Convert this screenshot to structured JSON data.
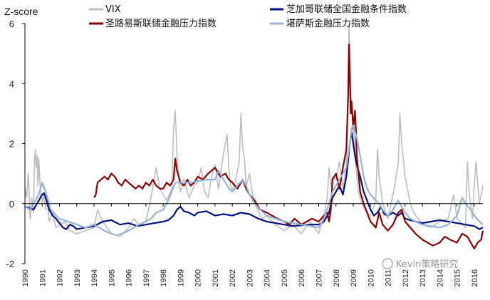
{
  "chart_data": {
    "type": "line",
    "title": "",
    "ylabel": "Z-score",
    "xlabel": "",
    "ylim": [
      -2,
      6
    ],
    "yticks": [
      -2,
      0,
      2,
      4,
      6
    ],
    "xlim": [
      1990,
      2016.5
    ],
    "xticks": [
      1990,
      1991,
      1992,
      1993,
      1994,
      1995,
      1996,
      1997,
      1998,
      1999,
      2000,
      2001,
      2002,
      2003,
      2004,
      2005,
      2006,
      2007,
      2008,
      2009,
      2010,
      2011,
      2012,
      2013,
      2014,
      2015,
      2016
    ],
    "grid": false,
    "legend_position": "top",
    "watermark": "Kevin策略研究",
    "series": [
      {
        "name": "VIX",
        "color": "#bdbdbd",
        "width": 1.6,
        "x": [
          1990,
          1990.1,
          1990.2,
          1990.3,
          1990.4,
          1990.5,
          1990.55,
          1990.6,
          1990.65,
          1990.7,
          1990.75,
          1990.8,
          1990.9,
          1991,
          1991.1,
          1991.2,
          1991.3,
          1991.4,
          1991.6,
          1991.8,
          1992,
          1992.3,
          1992.6,
          1993,
          1993.5,
          1994,
          1994.2,
          1994.5,
          1995,
          1995.5,
          1996,
          1996.3,
          1996.6,
          1997,
          1997.3,
          1997.6,
          1997.8,
          1998,
          1998.2,
          1998.5,
          1998.6,
          1998.7,
          1998.8,
          1998.9,
          1999,
          1999.2,
          1999.5,
          1999.8,
          2000,
          2000.2,
          2000.4,
          2000.6,
          2000.8,
          2001,
          2001.2,
          2001.5,
          2001.7,
          2001.8,
          2001.9,
          2002,
          2002.2,
          2002.4,
          2002.5,
          2002.6,
          2002.7,
          2002.8,
          2003,
          2003.2,
          2003.4,
          2003.7,
          2004,
          2004.5,
          2005,
          2005.5,
          2006,
          2006.5,
          2007,
          2007.3,
          2007.5,
          2007.6,
          2007.7,
          2007.8,
          2008,
          2008.2,
          2008.4,
          2008.6,
          2008.7,
          2008.75,
          2008.8,
          2008.85,
          2008.9,
          2009,
          2009.1,
          2009.2,
          2009.3,
          2009.5,
          2009.8,
          2010,
          2010.3,
          2010.4,
          2010.5,
          2010.7,
          2011,
          2011.3,
          2011.6,
          2011.7,
          2011.8,
          2012,
          2012.3,
          2012.5,
          2013,
          2013.5,
          2014,
          2014.5,
          2014.8,
          2015,
          2015.5,
          2015.6,
          2015.7,
          2015.9,
          2016,
          2016.1,
          2016.3,
          2016.5
        ],
        "values": [
          0.5,
          0.2,
          1.0,
          -0.5,
          0.2,
          -0.3,
          1.4,
          1.8,
          1.2,
          1.6,
          0.6,
          1.5,
          0.4,
          0.0,
          0.3,
          -0.2,
          0.2,
          -0.6,
          -0.3,
          -0.8,
          -0.7,
          -0.6,
          -0.9,
          -1.0,
          -0.9,
          -0.8,
          -0.2,
          -0.6,
          -1.0,
          -1.1,
          -0.8,
          -0.5,
          -0.7,
          -0.6,
          0.2,
          1.2,
          0.5,
          0.3,
          0.1,
          0.5,
          2.5,
          3.1,
          1.6,
          0.9,
          0.4,
          0.8,
          0.2,
          0.6,
          0.7,
          1.2,
          0.4,
          0.2,
          0.9,
          1.3,
          0.5,
          1.7,
          2.3,
          1.2,
          0.6,
          0.4,
          0.8,
          1.4,
          3.0,
          1.9,
          1.5,
          0.6,
          1.0,
          0.2,
          -0.1,
          -0.5,
          -0.4,
          -0.7,
          -0.9,
          -0.7,
          -1.0,
          -0.6,
          -1.0,
          -0.4,
          0.2,
          1.2,
          0.6,
          0.9,
          0.8,
          1.4,
          0.5,
          1.3,
          3.5,
          6.0,
          5.2,
          4.0,
          3.2,
          2.8,
          1.6,
          0.9,
          0.4,
          0.0,
          -0.3,
          -0.4,
          0.1,
          1.8,
          0.9,
          0.0,
          -0.5,
          0.3,
          1.3,
          3.0,
          2.0,
          0.9,
          0.0,
          -0.3,
          -0.7,
          -0.8,
          -0.6,
          -0.5,
          0.3,
          -0.5,
          -0.8,
          1.4,
          0.4,
          -0.5,
          0.6,
          1.4,
          0.0,
          0.6
        ]
      },
      {
        "name": "芝加哥联储全国金融条件指数",
        "color": "#00107a",
        "width": 2.2,
        "x": [
          1990,
          1990.3,
          1990.5,
          1990.7,
          1990.9,
          1991,
          1991.1,
          1991.2,
          1991.4,
          1991.6,
          1991.8,
          1992,
          1992.2,
          1992.4,
          1992.6,
          1992.8,
          1993,
          1993.5,
          1994,
          1994.5,
          1995,
          1995.5,
          1996,
          1996.5,
          1997,
          1997.5,
          1998,
          1998.3,
          1998.6,
          1998.8,
          1999,
          1999.2,
          1999.5,
          1999.8,
          2000,
          2000.5,
          2001,
          2001.5,
          2002,
          2002.5,
          2003,
          2003.5,
          2004,
          2004.5,
          2005,
          2005.5,
          2006,
          2006.5,
          2007,
          2007.3,
          2007.6,
          2007.8,
          2008,
          2008.2,
          2008.4,
          2008.6,
          2008.7,
          2008.8,
          2008.9,
          2009,
          2009.1,
          2009.2,
          2009.4,
          2009.6,
          2009.8,
          2010,
          2010.2,
          2010.4,
          2010.6,
          2010.8,
          2011,
          2011.3,
          2011.6,
          2011.8,
          2012,
          2012.3,
          2012.6,
          2013,
          2013.5,
          2014,
          2014.5,
          2015,
          2015.5,
          2016,
          2016.3,
          2016.5
        ],
        "values": [
          -0.1,
          -0.15,
          -0.2,
          0.0,
          0.2,
          0.3,
          0.35,
          0.2,
          -0.2,
          -0.4,
          -0.5,
          -0.65,
          -0.8,
          -0.85,
          -0.7,
          -0.75,
          -0.85,
          -0.8,
          -0.75,
          -0.6,
          -0.55,
          -0.7,
          -0.65,
          -0.75,
          -0.7,
          -0.65,
          -0.6,
          -0.55,
          -0.4,
          -0.2,
          -0.1,
          -0.25,
          -0.3,
          -0.4,
          -0.3,
          -0.25,
          -0.4,
          -0.35,
          -0.4,
          -0.3,
          -0.35,
          -0.5,
          -0.6,
          -0.65,
          -0.7,
          -0.75,
          -0.72,
          -0.7,
          -0.7,
          -0.6,
          -0.3,
          0.2,
          0.4,
          0.6,
          0.3,
          0.9,
          1.4,
          2.0,
          2.4,
          2.0,
          1.6,
          1.3,
          0.9,
          0.4,
          0.1,
          -0.2,
          -0.4,
          -0.3,
          -0.1,
          -0.35,
          -0.4,
          -0.3,
          -0.4,
          -0.3,
          -0.5,
          -0.55,
          -0.6,
          -0.65,
          -0.6,
          -0.55,
          -0.6,
          -0.65,
          -0.7,
          -0.75,
          -0.85,
          -0.8
        ]
      },
      {
        "name": "圣路易斯联储金融压力指数",
        "color": "#8b0000",
        "width": 2.2,
        "x": [
          1994,
          1994.1,
          1994.2,
          1994.4,
          1994.6,
          1994.8,
          1995,
          1995.2,
          1995.4,
          1995.6,
          1995.8,
          1996,
          1996.2,
          1996.4,
          1996.6,
          1996.8,
          1997,
          1997.2,
          1997.4,
          1997.6,
          1997.8,
          1998,
          1998.2,
          1998.4,
          1998.6,
          1998.7,
          1998.8,
          1999,
          1999.2,
          1999.4,
          1999.6,
          1999.8,
          2000,
          2000.3,
          2000.6,
          2001,
          2001.3,
          2001.6,
          2001.8,
          2002,
          2002.3,
          2002.6,
          2002.8,
          2003,
          2003.3,
          2003.6,
          2004,
          2004.3,
          2004.6,
          2005,
          2005.3,
          2005.6,
          2006,
          2006.3,
          2006.6,
          2007,
          2007.3,
          2007.5,
          2007.6,
          2007.7,
          2007.8,
          2008,
          2008.2,
          2008.4,
          2008.6,
          2008.7,
          2008.75,
          2008.8,
          2008.85,
          2008.9,
          2009,
          2009.1,
          2009.15,
          2009.2,
          2009.3,
          2009.4,
          2009.6,
          2009.8,
          2010,
          2010.3,
          2010.5,
          2010.7,
          2011,
          2011.3,
          2011.6,
          2011.8,
          2012,
          2012.3,
          2012.6,
          2013,
          2013.3,
          2013.6,
          2014,
          2014.3,
          2014.6,
          2015,
          2015.3,
          2015.6,
          2015.8,
          2016,
          2016.2,
          2016.4,
          2016.5
        ],
        "values": [
          0.2,
          0.3,
          0.7,
          0.8,
          0.9,
          0.8,
          1.0,
          0.9,
          0.7,
          0.6,
          0.8,
          0.7,
          0.6,
          0.5,
          0.6,
          0.5,
          0.7,
          0.6,
          0.8,
          0.6,
          0.5,
          0.5,
          0.7,
          0.6,
          0.8,
          1.5,
          1.1,
          0.7,
          0.6,
          0.8,
          0.6,
          0.7,
          0.9,
          0.8,
          1.0,
          1.2,
          0.9,
          1.0,
          0.8,
          0.7,
          0.5,
          0.8,
          0.5,
          0.3,
          0.1,
          -0.2,
          -0.3,
          -0.4,
          -0.5,
          -0.6,
          -0.7,
          -0.5,
          -0.7,
          -0.6,
          -0.5,
          -0.6,
          -0.4,
          -0.3,
          -0.6,
          -0.2,
          0.8,
          1.0,
          0.5,
          1.2,
          1.8,
          3.5,
          5.3,
          4.2,
          3.0,
          3.4,
          2.5,
          3.1,
          2.5,
          1.6,
          1.0,
          0.4,
          0.0,
          -0.3,
          -0.6,
          -0.8,
          -0.3,
          -0.7,
          -0.9,
          -0.7,
          -0.3,
          -0.2,
          -0.6,
          -0.8,
          -1.0,
          -1.2,
          -1.3,
          -1.4,
          -1.3,
          -1.1,
          -1.2,
          -1.3,
          -1.0,
          -1.1,
          -1.3,
          -1.5,
          -1.3,
          -1.2,
          -0.9
        ]
      },
      {
        "name": "堪萨斯金融压力指数",
        "color": "#95b3d7",
        "width": 2.2,
        "x": [
          1990,
          1990.3,
          1990.6,
          1990.8,
          1991,
          1991.2,
          1991.5,
          1991.8,
          1992,
          1992.5,
          1993,
          1993.5,
          1994,
          1994.3,
          1994.6,
          1995,
          1995.3,
          1995.6,
          1996,
          1996.3,
          1996.6,
          1997,
          1997.3,
          1997.6,
          1998,
          1998.3,
          1998.5,
          1998.7,
          1999,
          1999.5,
          2000,
          2000.5,
          2001,
          2001.2,
          2001.4,
          2001.6,
          2001.8,
          2002,
          2002.3,
          2002.6,
          2002.8,
          2003,
          2003.3,
          2003.6,
          2004,
          2004.5,
          2005,
          2005.5,
          2006,
          2006.5,
          2007,
          2007.3,
          2007.6,
          2007.8,
          2008,
          2008.3,
          2008.6,
          2008.8,
          2008.9,
          2009,
          2009.2,
          2009.4,
          2009.6,
          2009.8,
          2010,
          2010.3,
          2010.5,
          2010.7,
          2011,
          2011.3,
          2011.6,
          2011.8,
          2012,
          2012.3,
          2012.6,
          2013,
          2013.5,
          2014,
          2014.5,
          2015,
          2015.3,
          2015.5,
          2015.8,
          2016,
          2016.3,
          2016.5
        ],
        "values": [
          -0.1,
          -0.2,
          0.1,
          0.3,
          0.7,
          0.4,
          -0.2,
          -0.4,
          -0.5,
          -0.6,
          -0.7,
          -0.8,
          -0.7,
          -0.8,
          -0.9,
          -1.0,
          -1.05,
          -1.0,
          -0.9,
          -0.8,
          -0.7,
          -0.6,
          -0.5,
          -0.3,
          -0.2,
          0.1,
          0.4,
          0.7,
          0.7,
          0.7,
          0.75,
          0.8,
          0.8,
          1.1,
          0.9,
          0.7,
          0.5,
          0.4,
          0.6,
          0.8,
          0.6,
          0.3,
          0.0,
          -0.2,
          -0.4,
          -0.5,
          -0.6,
          -0.65,
          -0.7,
          -0.75,
          -0.8,
          -0.5,
          0.0,
          0.4,
          0.6,
          0.9,
          1.2,
          2.0,
          2.5,
          2.6,
          2.2,
          1.6,
          0.9,
          0.5,
          0.3,
          0.1,
          0.0,
          -0.2,
          -0.4,
          -0.2,
          0.1,
          -0.1,
          -0.3,
          -0.5,
          -0.6,
          -0.7,
          -0.75,
          -0.8,
          -0.7,
          -0.4,
          0.2,
          0.0,
          -0.2,
          -0.4,
          -0.6,
          -0.7
        ]
      }
    ]
  }
}
